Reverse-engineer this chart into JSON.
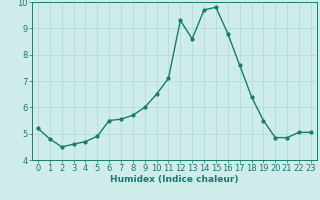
{
  "x": [
    0,
    1,
    2,
    3,
    4,
    5,
    6,
    7,
    8,
    9,
    10,
    11,
    12,
    13,
    14,
    15,
    16,
    17,
    18,
    19,
    20,
    21,
    22,
    23
  ],
  "y": [
    5.2,
    4.8,
    4.5,
    4.6,
    4.7,
    4.9,
    5.5,
    5.55,
    5.7,
    6.0,
    6.5,
    7.1,
    9.3,
    8.6,
    9.7,
    9.8,
    8.8,
    7.6,
    6.4,
    5.5,
    4.85,
    4.85,
    5.05,
    5.05
  ],
  "line_color": "#1a7a6e",
  "marker": "o",
  "marker_size": 2.0,
  "linewidth": 1.0,
  "bg_color": "#ceecea",
  "grid_color": "#aed8d4",
  "xlabel": "Humidex (Indice chaleur)",
  "ylabel": "",
  "ylim": [
    4,
    10
  ],
  "xlim": [
    -0.5,
    23.5
  ],
  "yticks": [
    4,
    5,
    6,
    7,
    8,
    9,
    10
  ],
  "xticks": [
    0,
    1,
    2,
    3,
    4,
    5,
    6,
    7,
    8,
    9,
    10,
    11,
    12,
    13,
    14,
    15,
    16,
    17,
    18,
    19,
    20,
    21,
    22,
    23
  ],
  "xlabel_fontsize": 6.5,
  "tick_fontsize": 6.0,
  "axis_color": "#1a7a6e"
}
